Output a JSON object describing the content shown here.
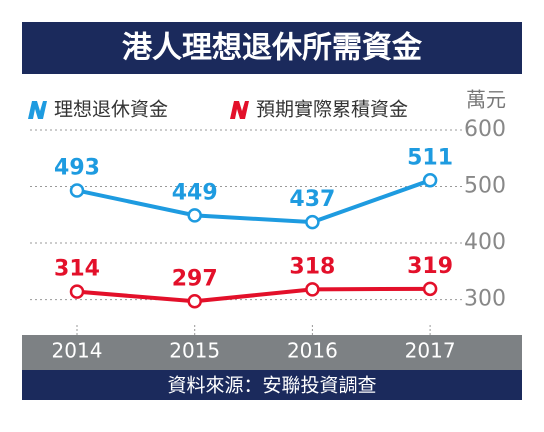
{
  "chart_data": {
    "type": "line",
    "title": "港人理想退休所需資金",
    "source": "資料來源：安聯投資調查",
    "y_label": "萬元",
    "categories": [
      "2014",
      "2015",
      "2016",
      "2017"
    ],
    "series": [
      {
        "name": "理想退休資金",
        "color": "#1e9be0",
        "values": [
          493,
          449,
          437,
          511
        ]
      },
      {
        "name": "預期實際累積資金",
        "color": "#e3102a",
        "values": [
          314,
          297,
          318,
          319
        ]
      }
    ],
    "ylim": [
      255,
      600
    ],
    "yticks": [
      300,
      400,
      500,
      600
    ],
    "grid": true
  }
}
